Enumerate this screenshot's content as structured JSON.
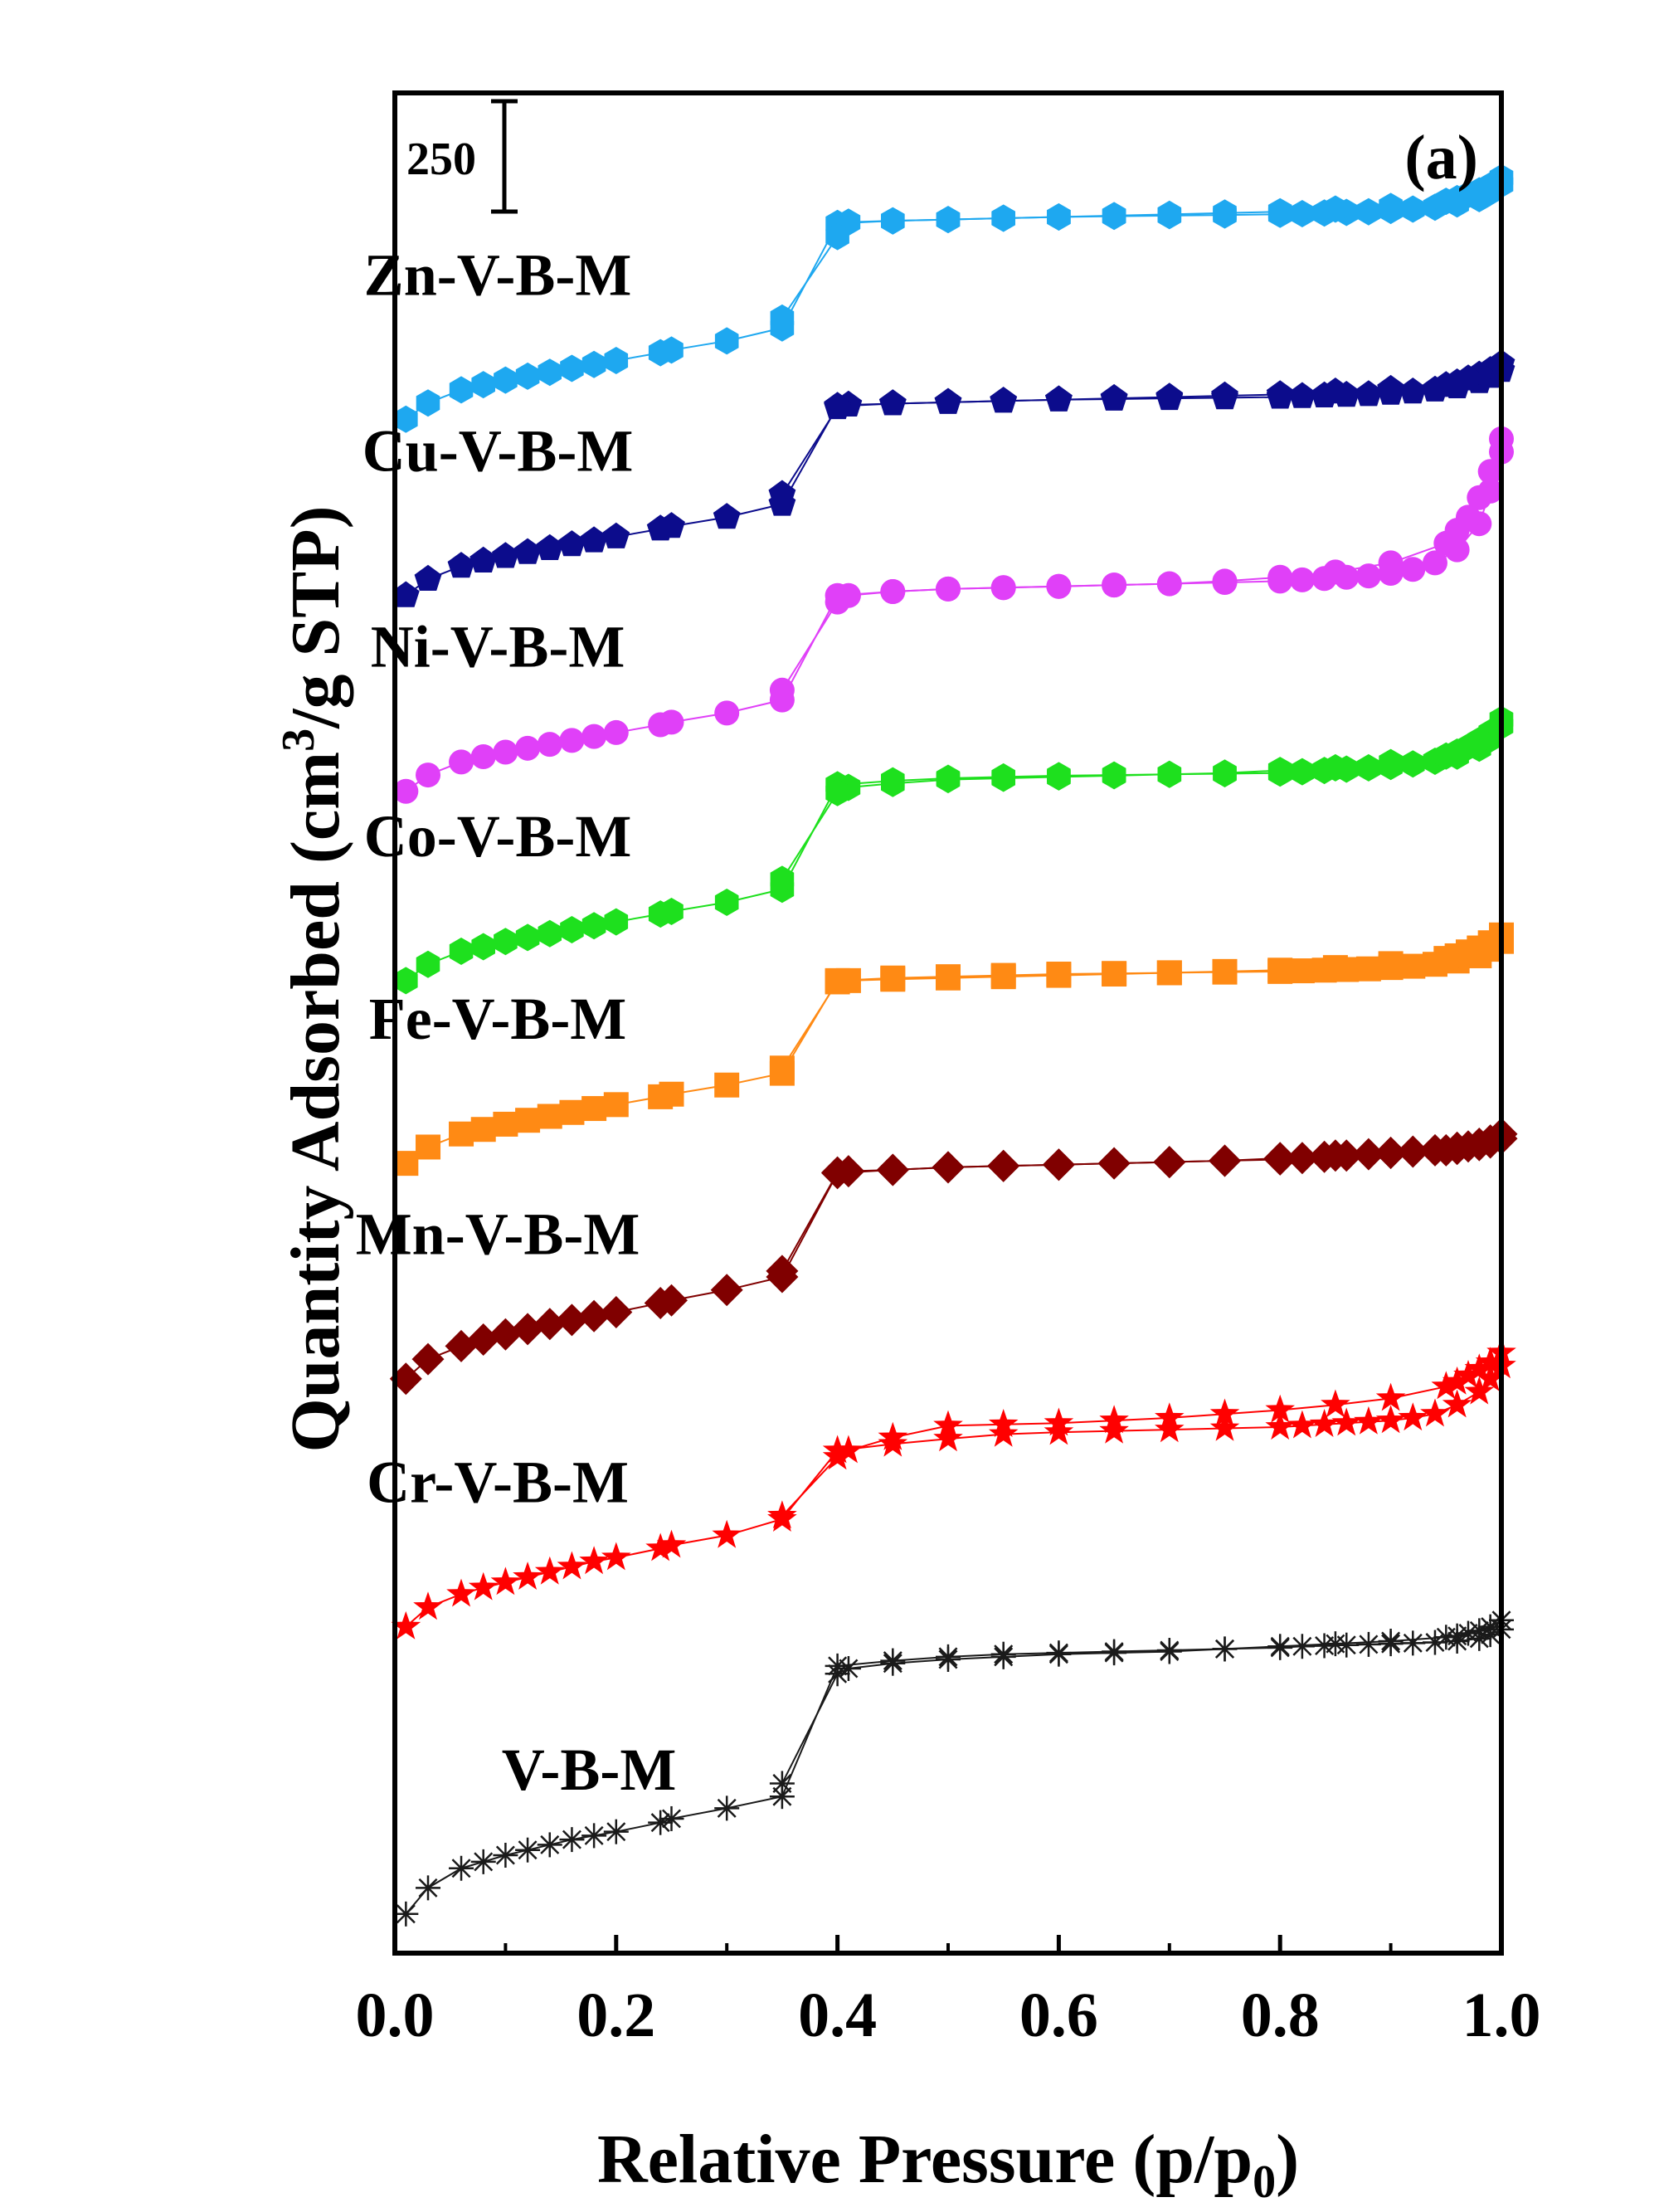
{
  "chart_data": {
    "type": "line",
    "panel_label": "(a)",
    "xlabel": "Relative Pressure (p/p",
    "xlabel_sub": "0",
    "xlabel_end": ")",
    "ylabel": "Quantity Adsorbed (cm",
    "ylabel_sup": "3",
    "ylabel_end": "/g STP)",
    "xlim": [
      0.0,
      1.0
    ],
    "x_ticks": [
      "0.0",
      "0.2",
      "0.4",
      "0.6",
      "0.8",
      "1.0"
    ],
    "scale_bar": {
      "label": "250",
      "value": 250
    },
    "ylim": [
      0,
      2850
    ],
    "grid": false,
    "adsorption_x": [
      0.01,
      0.03,
      0.06,
      0.08,
      0.1,
      0.12,
      0.14,
      0.16,
      0.18,
      0.2,
      0.24,
      0.25,
      0.3,
      0.35,
      0.4,
      0.45,
      0.5,
      0.55,
      0.6,
      0.65,
      0.7,
      0.75,
      0.8,
      0.82,
      0.84,
      0.86,
      0.88,
      0.9,
      0.92,
      0.94,
      0.96,
      0.98,
      0.99,
      1.0
    ],
    "desorption_x": [
      1.0,
      0.99,
      0.98,
      0.97,
      0.96,
      0.95,
      0.9,
      0.85,
      0.8,
      0.75,
      0.7,
      0.65,
      0.6,
      0.55,
      0.5,
      0.45,
      0.41,
      0.4,
      0.35
    ],
    "series": [
      {
        "name": "V-B-M",
        "color": "#1a1a1a",
        "marker": "asterisk",
        "adsorption_y": [
          60,
          100,
          130,
          140,
          150,
          158,
          166,
          174,
          180,
          186,
          200,
          206,
          222,
          240,
          440,
          448,
          454,
          458,
          460,
          462,
          464,
          466,
          468,
          470,
          471,
          472,
          473,
          474,
          475,
          476,
          478,
          482,
          488,
          496
        ],
        "desorption_y": [
          510,
          500,
          494,
          490,
          486,
          484,
          478,
          474,
          470,
          466,
          462,
          460,
          458,
          454,
          450,
          444,
          436,
          428,
          260
        ]
      },
      {
        "name": "Cr-V-B-M",
        "color": "#ff0000",
        "marker": "star",
        "adsorption_y": [
          500,
          530,
          550,
          560,
          568,
          576,
          584,
          592,
          600,
          606,
          620,
          625,
          640,
          665,
          770,
          780,
          788,
          795,
          798,
          800,
          802,
          804,
          806,
          808,
          810,
          812,
          814,
          816,
          820,
          826,
          840,
          860,
          880,
          900
        ],
        "desorption_y": [
          920,
          905,
          895,
          885,
          875,
          868,
          850,
          840,
          832,
          826,
          820,
          816,
          812,
          810,
          808,
          790,
          770,
          760,
          670
        ]
      },
      {
        "name": "Mn-V-B-M",
        "color": "#800000",
        "marker": "diamond",
        "adsorption_y": [
          880,
          910,
          930,
          940,
          948,
          956,
          964,
          970,
          976,
          982,
          996,
          1000,
          1016,
          1036,
          1195,
          1200,
          1204,
          1206,
          1208,
          1210,
          1212,
          1214,
          1216,
          1218,
          1220,
          1222,
          1224,
          1226,
          1228,
          1230,
          1234,
          1238,
          1242,
          1248
        ],
        "desorption_y": [
          1255,
          1245,
          1240,
          1236,
          1232,
          1230,
          1226,
          1222,
          1218,
          1214,
          1212,
          1210,
          1208,
          1206,
          1204,
          1200,
          1198,
          1196,
          1045
        ]
      },
      {
        "name": "Fe-V-B-M",
        "color": "#ff8a14",
        "marker": "square",
        "adsorption_y": [
          1210,
          1235,
          1255,
          1262,
          1270,
          1276,
          1282,
          1288,
          1294,
          1300,
          1312,
          1316,
          1330,
          1348,
          1490,
          1494,
          1496,
          1498,
          1500,
          1501,
          1502,
          1503,
          1504,
          1505,
          1506,
          1507,
          1508,
          1510,
          1512,
          1515,
          1520,
          1528,
          1538,
          1550
        ],
        "desorption_y": [
          1560,
          1548,
          1540,
          1534,
          1528,
          1524,
          1516,
          1510,
          1506,
          1504,
          1502,
          1500,
          1498,
          1496,
          1494,
          1492,
          1490,
          1488,
          1356
        ]
      },
      {
        "name": "Co-V-B-M",
        "color": "#1ee01e",
        "marker": "hexagon",
        "adsorption_y": [
          1490,
          1515,
          1535,
          1542,
          1550,
          1556,
          1562,
          1568,
          1574,
          1580,
          1592,
          1596,
          1610,
          1630,
          1790,
          1796,
          1800,
          1802,
          1804,
          1805,
          1806,
          1807,
          1808,
          1810,
          1812,
          1814,
          1816,
          1818,
          1822,
          1826,
          1834,
          1846,
          1860,
          1880
        ],
        "desorption_y": [
          1890,
          1870,
          1858,
          1848,
          1840,
          1834,
          1824,
          1816,
          1812,
          1808,
          1806,
          1804,
          1802,
          1800,
          1798,
          1792,
          1786,
          1778,
          1645
        ]
      },
      {
        "name": "Ni-V-B-M",
        "color": "#e040f8",
        "marker": "circle",
        "adsorption_y": [
          1780,
          1805,
          1825,
          1833,
          1840,
          1846,
          1852,
          1858,
          1864,
          1870,
          1882,
          1886,
          1900,
          1920,
          2080,
          2086,
          2090,
          2092,
          2094,
          2096,
          2098,
          2100,
          2102,
          2104,
          2106,
          2108,
          2110,
          2114,
          2120,
          2130,
          2150,
          2190,
          2240,
          2300
        ],
        "desorption_y": [
          2320,
          2270,
          2230,
          2200,
          2180,
          2160,
          2130,
          2116,
          2108,
          2102,
          2098,
          2096,
          2094,
          2092,
          2090,
          2086,
          2080,
          2070,
          1935
        ]
      },
      {
        "name": "Cu-V-B-M",
        "color": "#0c0c8c",
        "marker": "pentagon",
        "adsorption_y": [
          2080,
          2105,
          2125,
          2133,
          2140,
          2146,
          2152,
          2158,
          2164,
          2170,
          2182,
          2186,
          2200,
          2220,
          2370,
          2374,
          2376,
          2378,
          2380,
          2381,
          2382,
          2383,
          2384,
          2385,
          2386,
          2387,
          2388,
          2390,
          2392,
          2395,
          2400,
          2408,
          2416,
          2425
        ],
        "desorption_y": [
          2435,
          2425,
          2418,
          2412,
          2406,
          2402,
          2396,
          2392,
          2388,
          2386,
          2384,
          2382,
          2380,
          2378,
          2376,
          2374,
          2372,
          2368,
          2235
        ]
      },
      {
        "name": "Zn-V-B-M",
        "color": "#1ea8f0",
        "marker": "hexagon",
        "adsorption_y": [
          2350,
          2375,
          2395,
          2403,
          2410,
          2416,
          2422,
          2428,
          2434,
          2440,
          2452,
          2456,
          2470,
          2490,
          2650,
          2654,
          2656,
          2658,
          2660,
          2661,
          2662,
          2663,
          2664,
          2665,
          2666,
          2667,
          2668,
          2670,
          2672,
          2675,
          2680,
          2688,
          2698,
          2710
        ],
        "desorption_y": [
          2720,
          2708,
          2700,
          2694,
          2688,
          2684,
          2676,
          2672,
          2668,
          2666,
          2664,
          2662,
          2660,
          2658,
          2656,
          2654,
          2652,
          2630,
          2505
        ]
      }
    ]
  }
}
